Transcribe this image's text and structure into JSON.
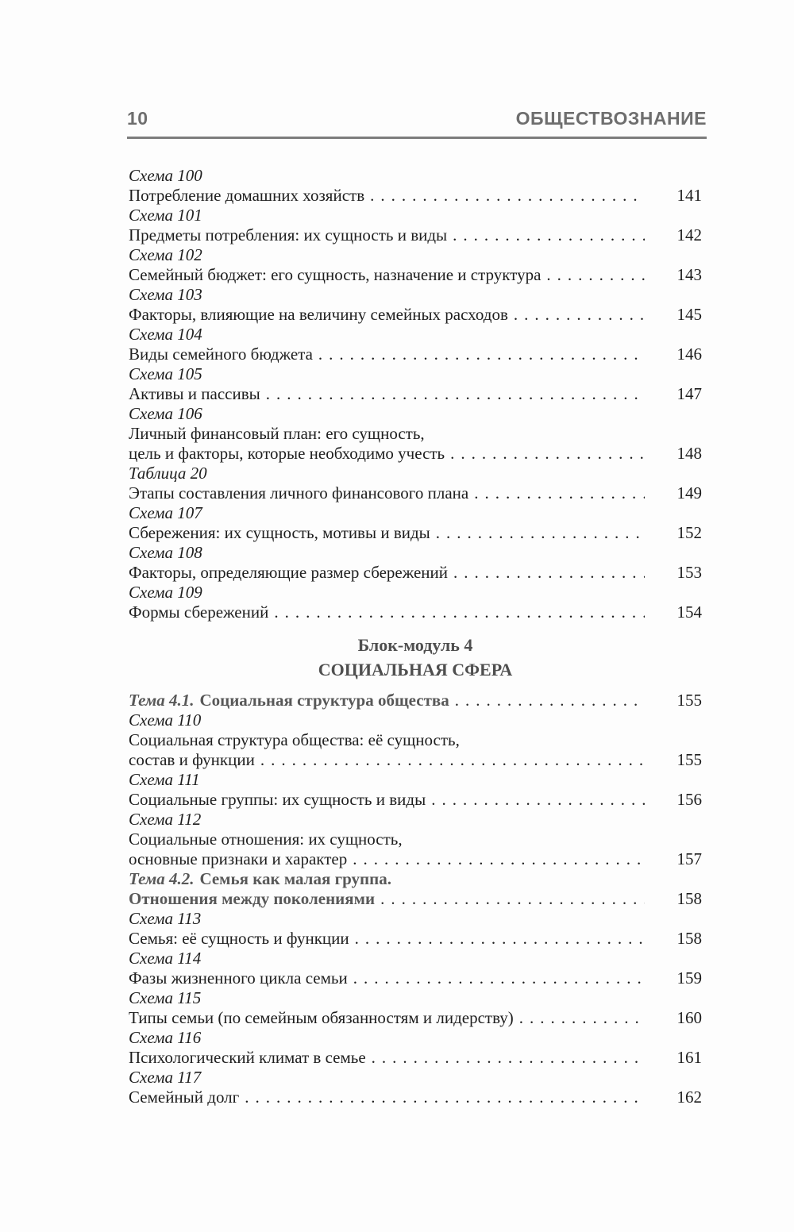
{
  "header": {
    "page_number": "10",
    "running_title": "ОБЩЕСТВОЗНАНИЕ"
  },
  "colors": {
    "header_gray": "#6e6e6e",
    "rule_gray": "#7d7d7d",
    "text_color": "#1e1e1e",
    "theme_gray": "#585858",
    "section_gray": "#4f4f4f"
  },
  "toc": [
    {
      "type": "label",
      "text": "Схема 100"
    },
    {
      "type": "entry",
      "text": "Потребление домашних хозяйств",
      "page": "141"
    },
    {
      "type": "label",
      "text": "Схема 101"
    },
    {
      "type": "entry",
      "text": "Предметы потребления: их сущность и виды",
      "page": "142"
    },
    {
      "type": "label",
      "text": "Схема 102"
    },
    {
      "type": "entry",
      "text": "Семейный бюджет: его сущность, назначение и структура",
      "page": "143"
    },
    {
      "type": "label",
      "text": "Схема 103"
    },
    {
      "type": "entry",
      "text": "Факторы, влияющие на величину семейных расходов",
      "page": "145"
    },
    {
      "type": "label",
      "text": "Схема 104"
    },
    {
      "type": "entry",
      "text": "Виды семейного бюджета",
      "page": "146"
    },
    {
      "type": "label",
      "text": "Схема 105"
    },
    {
      "type": "entry",
      "text": "Активы и пассивы",
      "page": "147"
    },
    {
      "type": "label",
      "text": "Схема 106"
    },
    {
      "type": "entry2",
      "line1": "Личный финансовый план: его сущность,",
      "line2": "цель и факторы, которые необходимо учесть",
      "page": "148"
    },
    {
      "type": "label",
      "text": "Таблица 20"
    },
    {
      "type": "entry",
      "text": "Этапы составления личного финансового плана",
      "page": "149"
    },
    {
      "type": "label",
      "text": "Схема 107"
    },
    {
      "type": "entry",
      "text": "Сбережения: их сущность, мотивы и виды",
      "page": "152"
    },
    {
      "type": "label",
      "text": "Схема 108"
    },
    {
      "type": "entry",
      "text": "Факторы, определяющие размер сбережений",
      "page": "153"
    },
    {
      "type": "label",
      "text": "Схема 109"
    },
    {
      "type": "entry",
      "text": "Формы сбережений",
      "page": "154"
    },
    {
      "type": "section",
      "lines": [
        "Блок-модуль 4",
        "СОЦИАЛЬНАЯ СФЕРА"
      ]
    },
    {
      "type": "theme",
      "prefix": "Тема 4.1.",
      "text": "Социальная структура общества",
      "page": "155"
    },
    {
      "type": "label",
      "text": "Схема 110"
    },
    {
      "type": "entry2",
      "line1": "Социальная структура общества: её сущность,",
      "line2": "состав и функции",
      "page": "155"
    },
    {
      "type": "label",
      "text": "Схема 111"
    },
    {
      "type": "entry",
      "text": "Социальные группы: их сущность и виды",
      "page": "156"
    },
    {
      "type": "label",
      "text": "Схема 112"
    },
    {
      "type": "entry2",
      "line1": "Социальные отношения: их сущность,",
      "line2": "основные признаки и характер",
      "page": "157"
    },
    {
      "type": "theme2",
      "prefix": "Тема 4.2.",
      "line1": "Семья как малая группа.",
      "line2": "Отношения между поколениями",
      "page": "158"
    },
    {
      "type": "label",
      "text": "Схема 113"
    },
    {
      "type": "entry",
      "text": "Семья: её сущность и функции",
      "page": "158"
    },
    {
      "type": "label",
      "text": "Схема 114"
    },
    {
      "type": "entry",
      "text": "Фазы жизненного цикла семьи",
      "page": "159"
    },
    {
      "type": "label",
      "text": "Схема 115"
    },
    {
      "type": "entry",
      "text": "Типы семьи (по семейным обязанностям и лидерству)",
      "page": "160"
    },
    {
      "type": "label",
      "text": "Схема 116"
    },
    {
      "type": "entry",
      "text": "Психологический климат в семье",
      "page": "161"
    },
    {
      "type": "label",
      "text": "Схема 117"
    },
    {
      "type": "entry",
      "text": "Семейный долг",
      "page": "162"
    }
  ]
}
